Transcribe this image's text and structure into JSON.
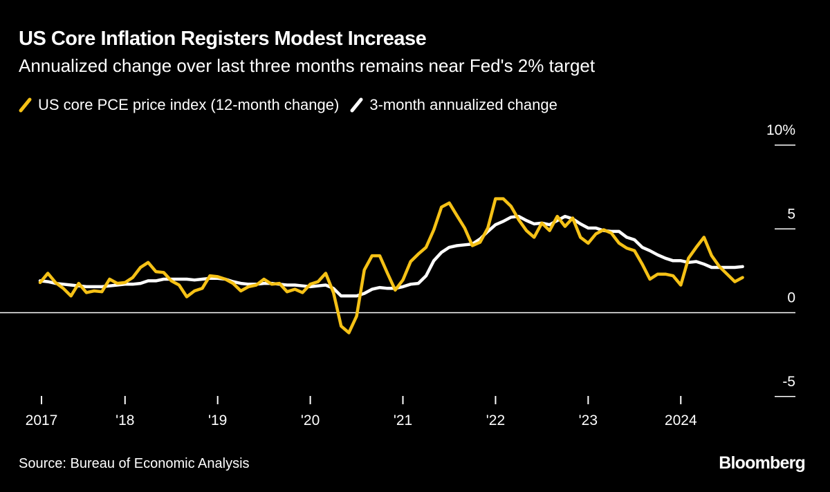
{
  "chart_data": {
    "type": "line",
    "title": "US Core Inflation Registers Modest Increase",
    "subtitle": "Annualized change over last three months remains near Fed's 2% target",
    "x_start": "2017-02",
    "x_end": "2024-09",
    "frequency": "monthly",
    "ylim": [
      -5,
      10
    ],
    "y_ticks": [
      {
        "value": 10,
        "label": "10%"
      },
      {
        "value": 5,
        "label": "5"
      },
      {
        "value": 0,
        "label": "0"
      },
      {
        "value": -5,
        "label": "-5"
      }
    ],
    "x_ticks": [
      {
        "date": "2017-02",
        "label": "2017"
      },
      {
        "date": "2018-01",
        "label": "'18"
      },
      {
        "date": "2019-01",
        "label": "'19"
      },
      {
        "date": "2020-01",
        "label": "'20"
      },
      {
        "date": "2021-01",
        "label": "'21"
      },
      {
        "date": "2022-01",
        "label": "'22"
      },
      {
        "date": "2023-01",
        "label": "'23"
      },
      {
        "date": "2024-01",
        "label": "2024"
      }
    ],
    "legend_placement": "top-left",
    "grid": false,
    "series": [
      {
        "name": "US core PCE price index (12-month change)",
        "color": "#f5c116",
        "values": [
          1.8,
          2.35,
          1.8,
          1.45,
          1.0,
          1.75,
          1.2,
          1.3,
          1.25,
          2.0,
          1.75,
          1.8,
          2.1,
          2.7,
          3.0,
          2.45,
          2.4,
          1.9,
          1.65,
          0.95,
          1.3,
          1.45,
          2.2,
          2.15,
          2.0,
          1.75,
          1.3,
          1.55,
          1.65,
          2.0,
          1.7,
          1.75,
          1.25,
          1.4,
          1.2,
          1.7,
          1.85,
          2.35,
          1.2,
          -0.8,
          -1.2,
          -0.2,
          2.55,
          3.4,
          3.4,
          2.35,
          1.35,
          1.95,
          3.05,
          3.5,
          3.9,
          4.95,
          6.3,
          6.55,
          5.8,
          5.05,
          4.0,
          4.2,
          5.05,
          6.8,
          6.8,
          6.35,
          5.55,
          4.9,
          4.5,
          5.35,
          4.9,
          5.75,
          5.15,
          5.65,
          4.5,
          4.15,
          4.7,
          4.95,
          4.75,
          4.15,
          3.85,
          3.7,
          2.9,
          2.0,
          2.3,
          2.3,
          2.2,
          1.65,
          3.25,
          3.9,
          4.5,
          3.4,
          2.75,
          2.3,
          1.85,
          2.1
        ]
      },
      {
        "name": "3-month annualized change",
        "color": "#ffffff",
        "values": [
          1.9,
          1.85,
          1.75,
          1.7,
          1.65,
          1.6,
          1.55,
          1.55,
          1.55,
          1.6,
          1.65,
          1.7,
          1.7,
          1.75,
          1.9,
          1.9,
          2.0,
          2.0,
          2.0,
          2.0,
          1.95,
          2.0,
          2.05,
          2.05,
          2.0,
          1.85,
          1.75,
          1.7,
          1.7,
          1.75,
          1.75,
          1.7,
          1.65,
          1.65,
          1.6,
          1.55,
          1.6,
          1.65,
          1.45,
          1.0,
          1.0,
          1.0,
          1.15,
          1.4,
          1.5,
          1.45,
          1.45,
          1.55,
          1.7,
          1.75,
          2.2,
          3.1,
          3.6,
          3.9,
          4.0,
          4.05,
          4.1,
          4.4,
          4.85,
          5.25,
          5.45,
          5.7,
          5.75,
          5.5,
          5.3,
          5.35,
          5.25,
          5.5,
          5.75,
          5.6,
          5.3,
          5.05,
          5.05,
          4.9,
          4.85,
          4.85,
          4.5,
          4.35,
          3.9,
          3.7,
          3.45,
          3.25,
          3.1,
          3.1,
          3.0,
          3.05,
          2.9,
          2.7,
          2.7,
          2.7,
          2.7,
          2.75
        ]
      }
    ]
  },
  "source": "Source: Bureau of Economic Analysis",
  "logo": "Bloomberg"
}
